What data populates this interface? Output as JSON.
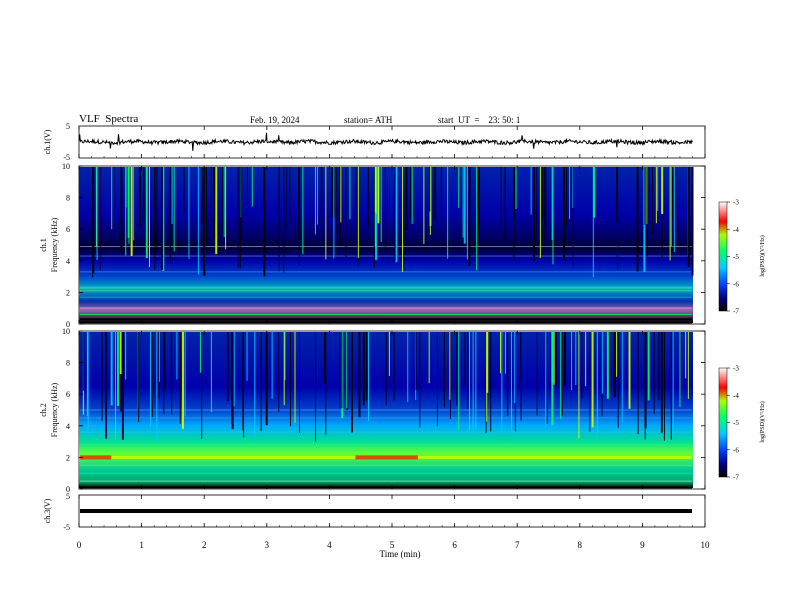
{
  "header": {
    "title": "VLF  Spectra",
    "date": "Feb. 19, 2024",
    "station": "station= ATH",
    "start_ut": "start  UT  =    23: 50: 1"
  },
  "chart_data": [
    {
      "type": "line",
      "panel": "ch1-waveform",
      "ylabel": "ch.1(V)",
      "ylim": [
        -5,
        5
      ],
      "yticks": [
        "5",
        "-5"
      ],
      "x_range_min": [
        0,
        9.8
      ],
      "trace": "noisy waveform centered near 0 V, amplitude about ±1 V"
    },
    {
      "type": "heatmap",
      "panel": "ch1-spectrogram",
      "ylabel": "ch.1\nFrequency  (kHz)",
      "ylim": [
        0,
        10
      ],
      "yticks": [
        "0",
        "2",
        "4",
        "6",
        "8",
        "10"
      ],
      "colorbar": {
        "label": "log(PSD)(V²/Hz)",
        "range": [
          -7,
          -3
        ],
        "ticks": [
          "-3",
          "-4",
          "-5",
          "-6",
          "-7"
        ]
      }
    },
    {
      "type": "heatmap",
      "panel": "ch2-spectrogram",
      "ylabel": "ch.2\nFrequency  (kHz)",
      "ylim": [
        0,
        10
      ],
      "yticks": [
        "0",
        "2",
        "4",
        "6",
        "8",
        "10"
      ],
      "colorbar": {
        "label": "log(PSD)(V²/Hz)",
        "range": [
          -7,
          -3
        ],
        "ticks": [
          "-3",
          "-4",
          "-5",
          "-6",
          "-7"
        ]
      }
    },
    {
      "type": "line",
      "panel": "ch3-waveform",
      "ylabel": "ch.3(V)",
      "ylim": [
        -5,
        5
      ],
      "yticks": [
        "5",
        "-5"
      ],
      "trace": "flat thick line near -1.5 V"
    }
  ],
  "xaxis": {
    "label": "Time  (min)",
    "range": [
      0,
      10
    ],
    "ticks": [
      "0",
      "1",
      "2",
      "3",
      "4",
      "5",
      "6",
      "7",
      "8",
      "9",
      "10"
    ]
  },
  "colors": {
    "deep": "#000033",
    "blue": "#0000cc",
    "cyan": "#00ccff",
    "green": "#00ff66",
    "yellow": "#ffff00",
    "red": "#ff0000"
  }
}
